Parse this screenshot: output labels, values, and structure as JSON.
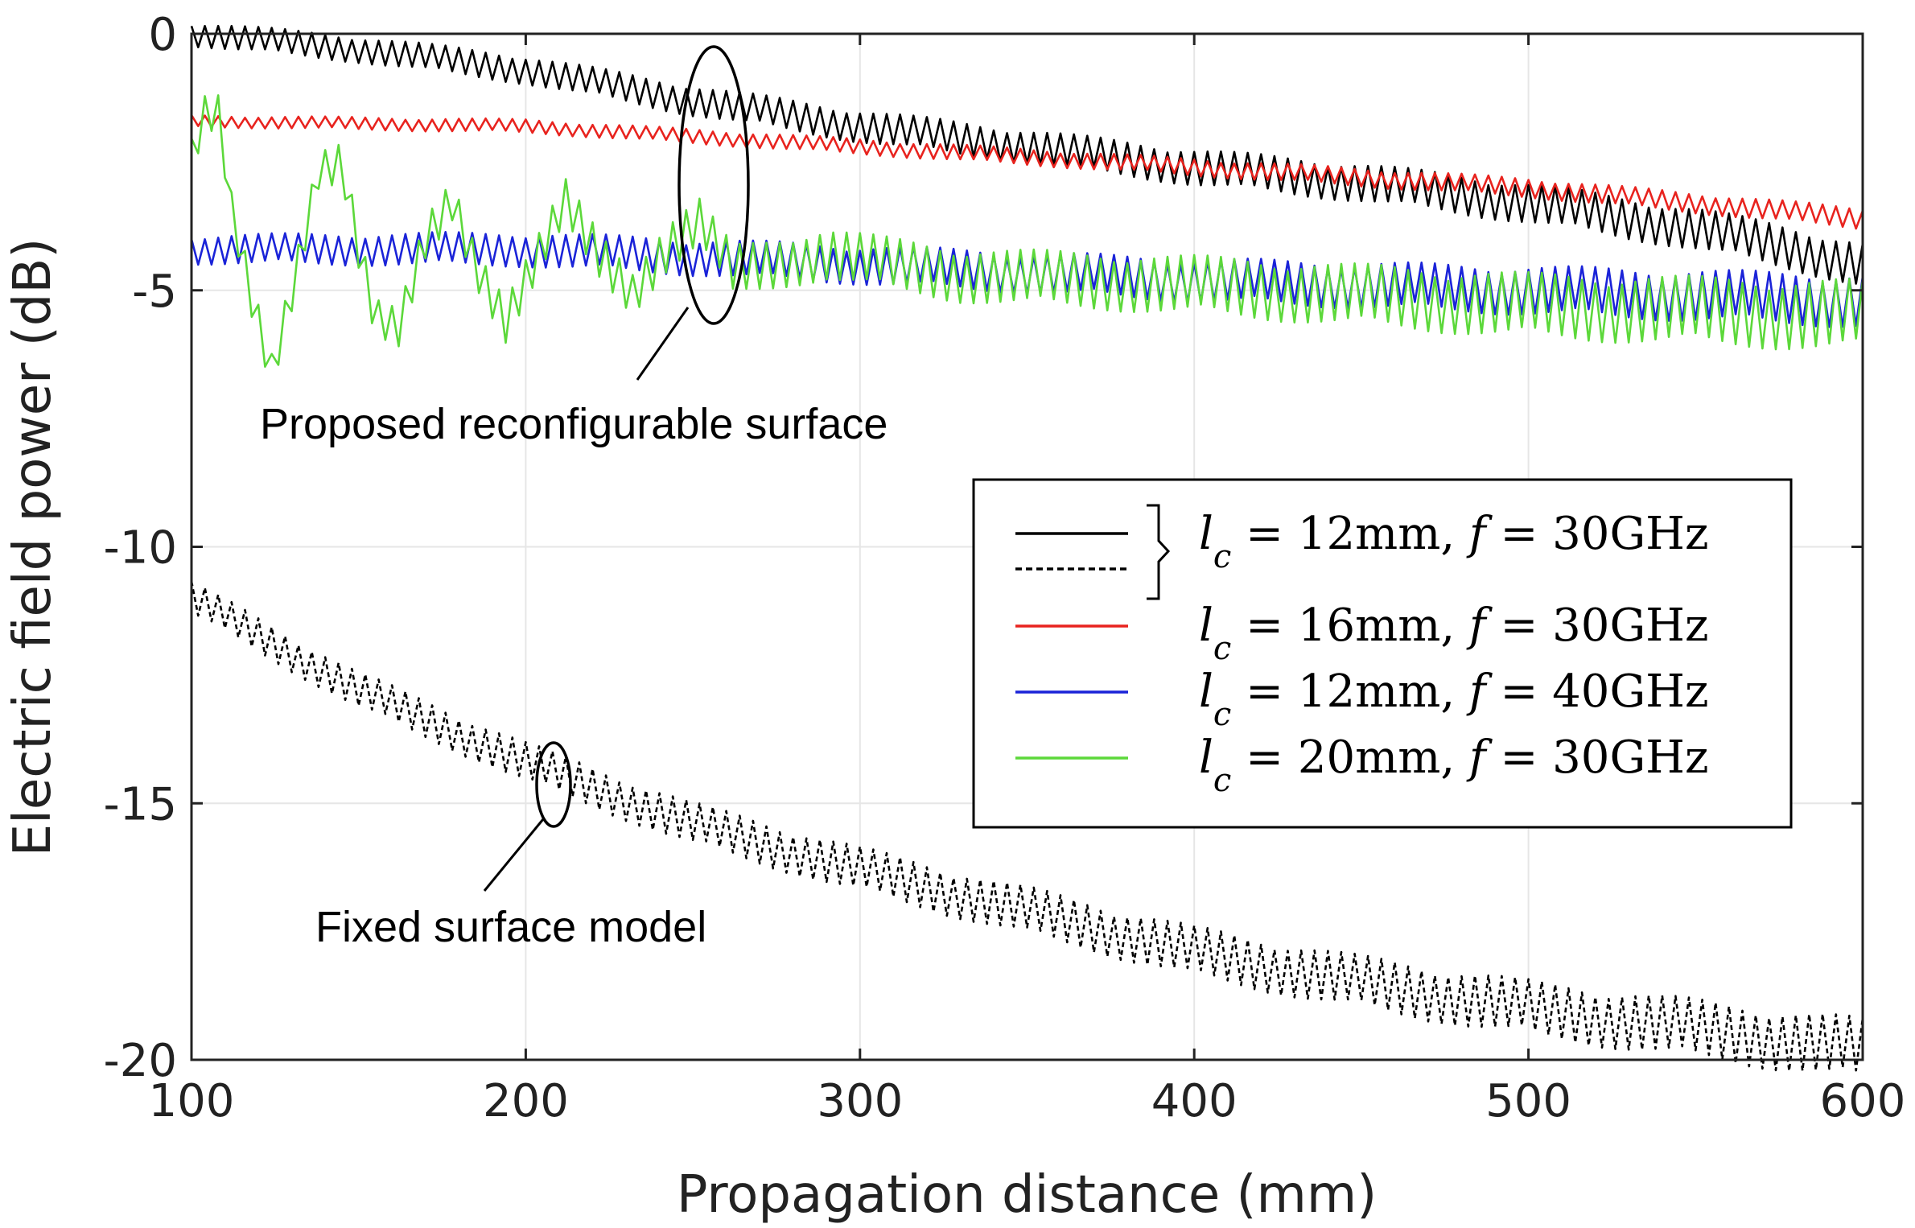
{
  "chart_data": {
    "type": "line",
    "title": "",
    "xlabel": "Propagation distance (mm)",
    "ylabel": "Electric field power (dB)",
    "xlim": [
      100,
      600
    ],
    "ylim": [
      -20,
      0
    ],
    "x_ticks": [
      "100",
      "200",
      "300",
      "400",
      "500",
      "600"
    ],
    "y_ticks": [
      "0",
      "-5",
      "-10",
      "-15",
      "-20"
    ],
    "grid": true,
    "legend_position": "right",
    "series": [
      {
        "name": "l_c = 12mm, f = 30GHz (reconfigurable)",
        "color": "#000000",
        "style": "solid",
        "points": [
          [
            100,
            0.0
          ],
          [
            150,
            -0.3
          ],
          [
            200,
            -0.7
          ],
          [
            250,
            -1.3
          ],
          [
            300,
            -1.8
          ],
          [
            350,
            -2.2
          ],
          [
            400,
            -2.6
          ],
          [
            450,
            -2.9
          ],
          [
            500,
            -3.3
          ],
          [
            550,
            -3.8
          ],
          [
            580,
            -4.2
          ],
          [
            600,
            -4.5
          ]
        ],
        "ripple": 0.25
      },
      {
        "name": "l_c = 12mm, f = 30GHz (fixed)",
        "color": "#000000",
        "style": "dashed",
        "points": [
          [
            100,
            -11.0
          ],
          [
            150,
            -12.8
          ],
          [
            200,
            -14.2
          ],
          [
            250,
            -15.4
          ],
          [
            300,
            -16.3
          ],
          [
            350,
            -17.1
          ],
          [
            400,
            -17.9
          ],
          [
            450,
            -18.5
          ],
          [
            500,
            -19.0
          ],
          [
            550,
            -19.4
          ],
          [
            600,
            -19.8
          ]
        ],
        "ripple": 0.35
      },
      {
        "name": "l_c = 16mm, f = 30GHz",
        "color": "#e8231e",
        "style": "solid",
        "points": [
          [
            100,
            -1.7
          ],
          [
            200,
            -1.8
          ],
          [
            300,
            -2.2
          ],
          [
            400,
            -2.6
          ],
          [
            500,
            -3.0
          ],
          [
            550,
            -3.3
          ],
          [
            600,
            -3.6
          ]
        ],
        "ripple": 0.12
      },
      {
        "name": "l_c = 12mm, f = 40GHz",
        "color": "#1a23d8",
        "style": "solid",
        "points": [
          [
            100,
            -4.2
          ],
          [
            200,
            -4.2
          ],
          [
            300,
            -4.5
          ],
          [
            400,
            -4.8
          ],
          [
            500,
            -5.0
          ],
          [
            600,
            -5.2
          ]
        ],
        "ripple": 0.3
      },
      {
        "name": "l_c = 20mm, f = 30GHz",
        "color": "#5cd83a",
        "style": "solid",
        "points": [
          [
            100,
            -2.4
          ],
          [
            104,
            -1.6
          ],
          [
            108,
            -1.6
          ],
          [
            112,
            -3.5
          ],
          [
            118,
            -5.2
          ],
          [
            124,
            -6.6
          ],
          [
            130,
            -5.0
          ],
          [
            138,
            -2.6
          ],
          [
            145,
            -2.5
          ],
          [
            150,
            -4.2
          ],
          [
            155,
            -5.6
          ],
          [
            162,
            -5.8
          ],
          [
            170,
            -4.0
          ],
          [
            178,
            -3.2
          ],
          [
            186,
            -4.6
          ],
          [
            194,
            -5.6
          ],
          [
            202,
            -4.6
          ],
          [
            212,
            -3.3
          ],
          [
            222,
            -4.3
          ],
          [
            232,
            -5.0
          ],
          [
            242,
            -4.2
          ],
          [
            252,
            -3.7
          ],
          [
            262,
            -4.6
          ],
          [
            290,
            -4.3
          ],
          [
            330,
            -4.7
          ],
          [
            400,
            -4.9
          ],
          [
            450,
            -5.1
          ],
          [
            500,
            -5.3
          ],
          [
            550,
            -5.4
          ],
          [
            600,
            -5.5
          ]
        ],
        "ripple": 0.4
      }
    ],
    "annotations": [
      {
        "text": "Proposed reconfigurable surface"
      },
      {
        "text": "Fixed surface model"
      }
    ],
    "legend": [
      {
        "label": "l_c = 12mm, f = 30GHz",
        "lhs": "l",
        "sub": "c",
        "rhs": " = 12mm, ",
        "f": "f",
        "feq": " = 30GHz",
        "colors": [
          "#000000",
          "#000000"
        ],
        "styles": [
          "solid",
          "dashed"
        ]
      },
      {
        "label": "l_c = 16mm, f = 30GHz",
        "lhs": "l",
        "sub": "c",
        "rhs": " = 16mm, ",
        "f": "f",
        "feq": " = 30GHz",
        "colors": [
          "#e8231e"
        ],
        "styles": [
          "solid"
        ]
      },
      {
        "label": "l_c = 12mm, f = 40GHz",
        "lhs": "l",
        "sub": "c",
        "rhs": " = 12mm, ",
        "f": "f",
        "feq": " = 40GHz",
        "colors": [
          "#1a23d8"
        ],
        "styles": [
          "solid"
        ]
      },
      {
        "label": "l_c = 20mm, f = 30GHz",
        "lhs": "l",
        "sub": "c",
        "rhs": " = 20mm, ",
        "f": "f",
        "feq": " = 30GHz",
        "colors": [
          "#5cd83a"
        ],
        "styles": [
          "solid"
        ]
      }
    ]
  }
}
